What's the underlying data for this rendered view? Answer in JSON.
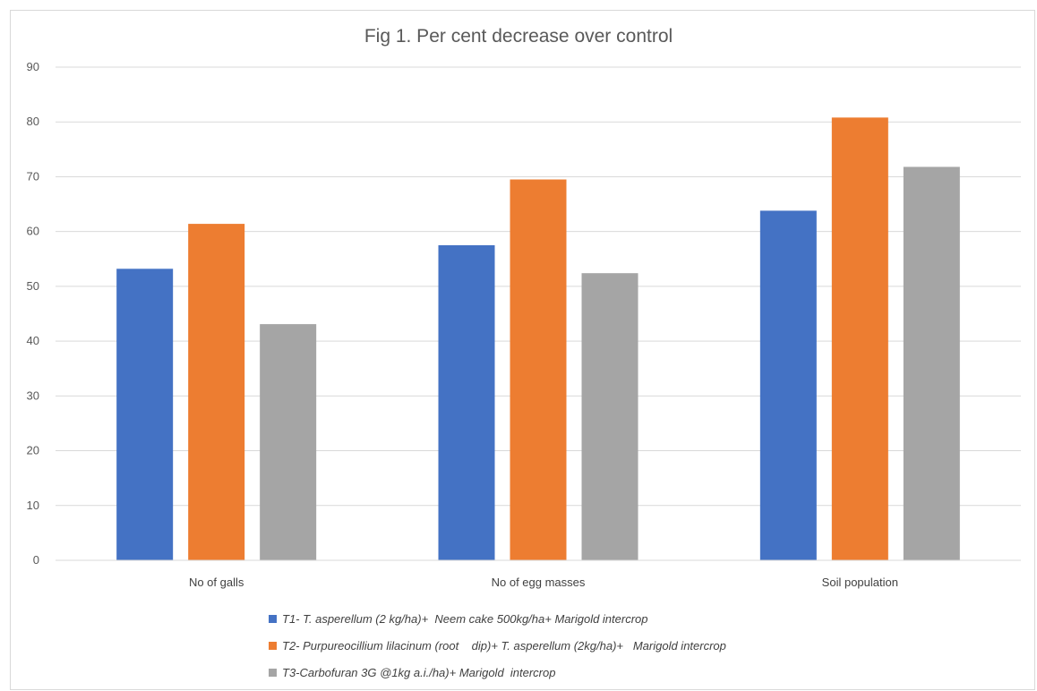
{
  "chart_data": {
    "type": "bar",
    "title": "Fig 1. Per cent decrease over control",
    "xlabel": "",
    "ylabel": "",
    "categories": [
      "No of galls",
      "No of egg masses",
      "Soil population"
    ],
    "ylim": [
      0,
      90
    ],
    "yticks": [
      0,
      10,
      20,
      30,
      40,
      50,
      60,
      70,
      80,
      90
    ],
    "grid": true,
    "legend_position": "bottom",
    "series": [
      {
        "name": "T1- T. asperellum (2 kg/ha)+  Neem cake 500kg/ha+ Marigold intercrop",
        "color": "#4472c4",
        "values": [
          53.2,
          57.5,
          63.8
        ]
      },
      {
        "name": "T2- Purpureocillium lilacinum (root    dip)+ T. asperellum (2kg/ha)+   Marigold intercrop",
        "color": "#ed7d31",
        "values": [
          61.4,
          69.5,
          80.8
        ]
      },
      {
        "name": "T3-Carbofuran 3G @1kg a.i./ha)+ Marigold  intercrop",
        "color": "#a5a5a5",
        "values": [
          43.1,
          52.4,
          71.8
        ]
      }
    ]
  }
}
